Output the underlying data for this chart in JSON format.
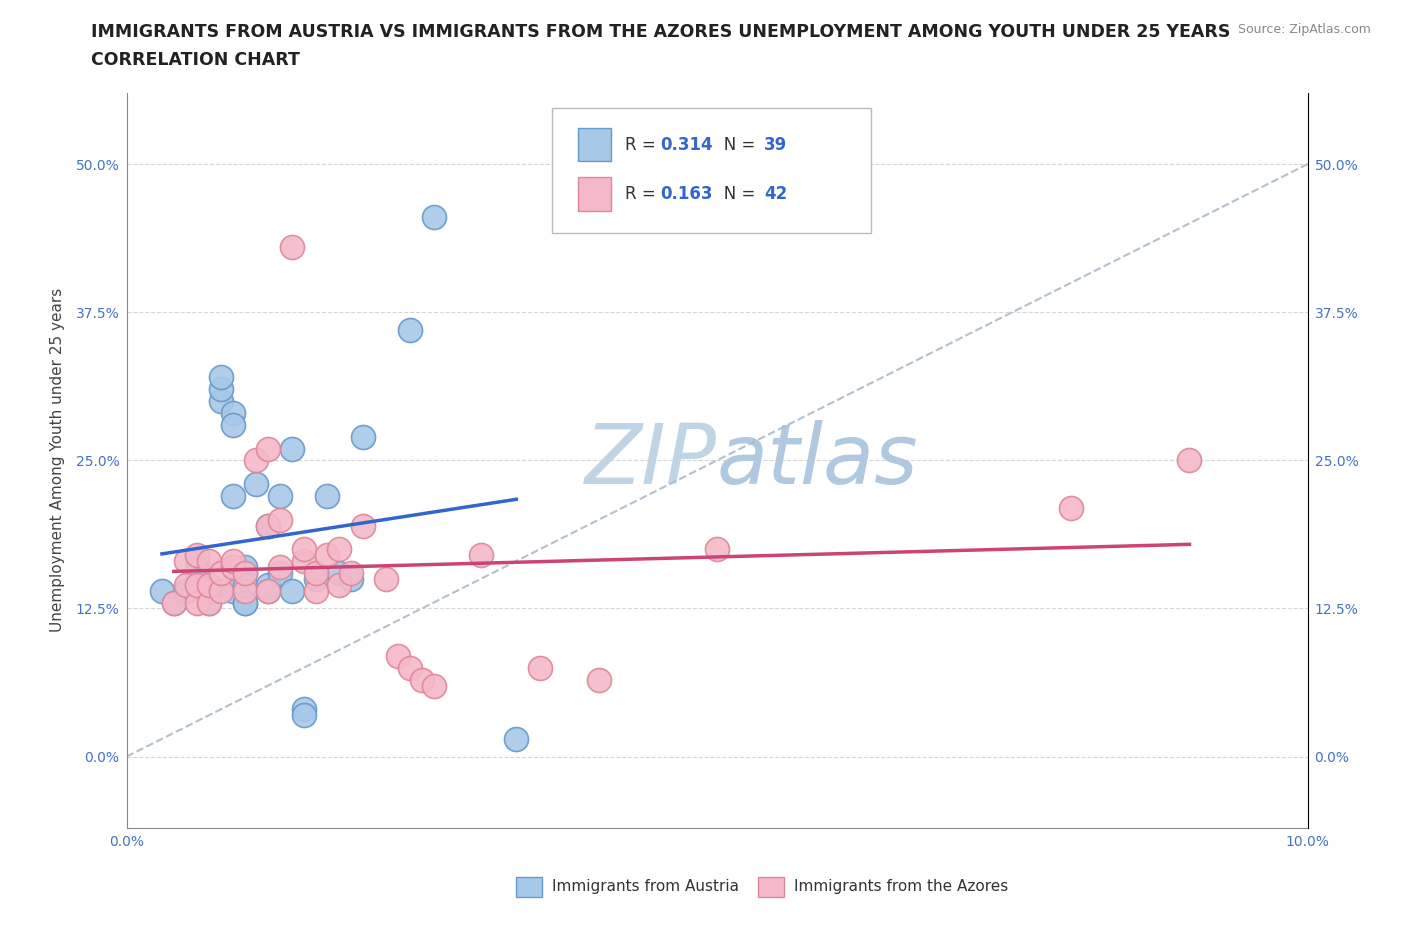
{
  "title_line1": "IMMIGRANTS FROM AUSTRIA VS IMMIGRANTS FROM THE AZORES UNEMPLOYMENT AMONG YOUTH UNDER 25 YEARS",
  "title_line2": "CORRELATION CHART",
  "source_text": "Source: ZipAtlas.com",
  "ylabel": "Unemployment Among Youth under 25 years",
  "xlim": [
    0.0,
    0.1
  ],
  "ylim": [
    -0.06,
    0.56
  ],
  "yticks": [
    0.0,
    0.125,
    0.25,
    0.375,
    0.5
  ],
  "ytick_labels": [
    "0.0%",
    "12.5%",
    "25.0%",
    "37.5%",
    "50.0%"
  ],
  "xticks": [
    0.0,
    0.02,
    0.04,
    0.06,
    0.08,
    0.1
  ],
  "xtick_labels": [
    "0.0%",
    "",
    "",
    "",
    "",
    "10.0%"
  ],
  "watermark_part1": "ZIP",
  "watermark_part2": "atlas",
  "austria_color": "#a8c8e8",
  "austria_edge_color": "#6699cc",
  "azores_color": "#f5b8c8",
  "azores_edge_color": "#dd8899",
  "austria_line_color": "#3366cc",
  "azores_line_color": "#cc4477",
  "diagonal_color": "#aabbcc",
  "R_austria": 0.314,
  "N_austria": 39,
  "R_azores": 0.163,
  "N_azores": 42,
  "austria_scatter_x": [
    0.003,
    0.004,
    0.005,
    0.006,
    0.006,
    0.007,
    0.007,
    0.008,
    0.008,
    0.008,
    0.009,
    0.009,
    0.009,
    0.009,
    0.009,
    0.01,
    0.01,
    0.01,
    0.01,
    0.01,
    0.01,
    0.011,
    0.012,
    0.012,
    0.012,
    0.013,
    0.013,
    0.014,
    0.014,
    0.015,
    0.015,
    0.016,
    0.017,
    0.018,
    0.019,
    0.02,
    0.024,
    0.026,
    0.033
  ],
  "austria_scatter_y": [
    0.14,
    0.13,
    0.14,
    0.165,
    0.155,
    0.13,
    0.14,
    0.3,
    0.31,
    0.32,
    0.22,
    0.29,
    0.28,
    0.16,
    0.14,
    0.13,
    0.14,
    0.155,
    0.16,
    0.145,
    0.13,
    0.23,
    0.145,
    0.195,
    0.14,
    0.22,
    0.155,
    0.14,
    0.26,
    0.04,
    0.035,
    0.15,
    0.22,
    0.155,
    0.15,
    0.27,
    0.36,
    0.455,
    0.015
  ],
  "azores_scatter_x": [
    0.004,
    0.005,
    0.005,
    0.006,
    0.006,
    0.006,
    0.007,
    0.007,
    0.007,
    0.008,
    0.008,
    0.009,
    0.009,
    0.01,
    0.01,
    0.011,
    0.012,
    0.012,
    0.012,
    0.013,
    0.013,
    0.014,
    0.015,
    0.015,
    0.016,
    0.016,
    0.017,
    0.018,
    0.018,
    0.019,
    0.02,
    0.022,
    0.023,
    0.024,
    0.025,
    0.026,
    0.03,
    0.035,
    0.04,
    0.05,
    0.08,
    0.09
  ],
  "azores_scatter_y": [
    0.13,
    0.145,
    0.165,
    0.13,
    0.145,
    0.17,
    0.13,
    0.145,
    0.165,
    0.14,
    0.155,
    0.16,
    0.165,
    0.14,
    0.155,
    0.25,
    0.26,
    0.14,
    0.195,
    0.16,
    0.2,
    0.43,
    0.165,
    0.175,
    0.14,
    0.155,
    0.17,
    0.175,
    0.145,
    0.155,
    0.195,
    0.15,
    0.085,
    0.075,
    0.065,
    0.06,
    0.17,
    0.075,
    0.065,
    0.175,
    0.21,
    0.25
  ],
  "background_color": "#ffffff",
  "grid_color": "#cccccc",
  "title_fontsize": 12.5,
  "axis_label_fontsize": 11,
  "tick_fontsize": 10,
  "tick_color": "#4472c4",
  "watermark_color1": "#c0d4e8",
  "watermark_color2": "#b0c8e0",
  "watermark_fontsize": 60
}
